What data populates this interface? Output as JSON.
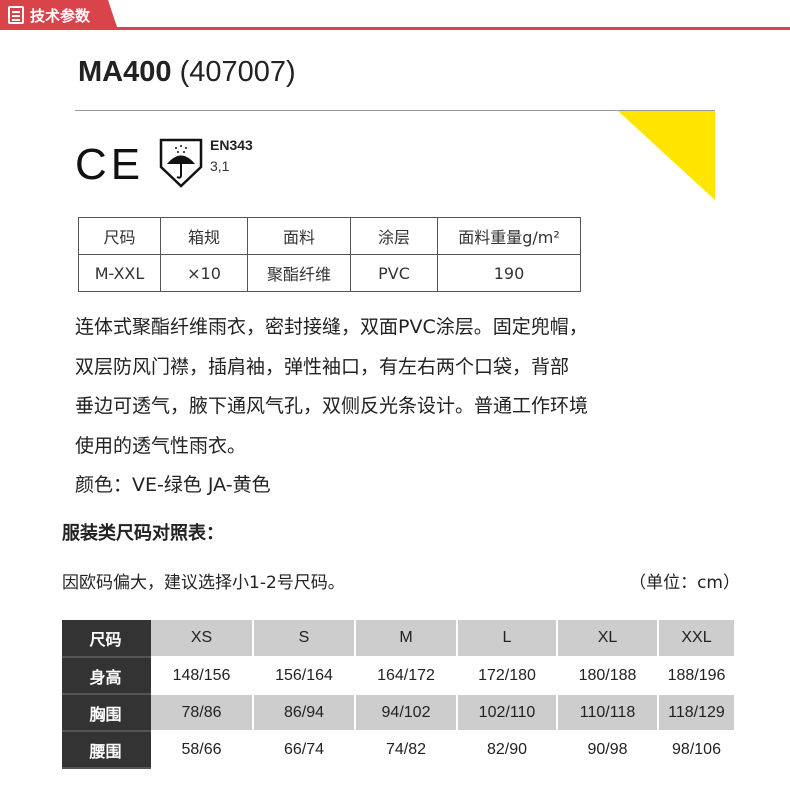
{
  "header": {
    "tab_label": "技术参数",
    "accent": "#d9434a"
  },
  "product": {
    "model": "MA400",
    "code": "(407007)"
  },
  "certs": {
    "ce": "CE",
    "standard": "EN343",
    "rating": "3,1",
    "icon": "umbrella-shield-icon"
  },
  "spec_table": {
    "headers": [
      "尺码",
      "箱规",
      "面料",
      "涂层",
      "面料重量g/m²"
    ],
    "rows": [
      [
        "M-XXL",
        "×10",
        "聚酯纤维",
        "PVC",
        "190"
      ]
    ]
  },
  "description": [
    "连体式聚酯纤维雨衣，密封接缝，双面PVC涂层。固定兜帽，",
    "双层防风门襟，插肩袖，弹性袖口，有左右两个口袋，背部",
    "垂边可透气，腋下通风气孔，双侧反光条设计。普通工作环境",
    "使用的透气性雨衣。",
    "颜色：VE-绿色 JA-黄色"
  ],
  "size_chart": {
    "title": "服装类尺码对照表：",
    "note": "因欧码偏大，建议选择小1-2号尺码。",
    "unit": "（单位：cm）",
    "rows": [
      [
        "尺码",
        "XS",
        "S",
        "M",
        "L",
        "XL",
        "XXL"
      ],
      [
        "身高",
        "148/156",
        "156/164",
        "164/172",
        "172/180",
        "180/188",
        "188/196"
      ],
      [
        "胸围",
        "78/86",
        "86/94",
        "94/102",
        "102/110",
        "110/118",
        "118/129"
      ],
      [
        "腰围",
        "58/66",
        "66/74",
        "74/82",
        "82/90",
        "90/98",
        "98/106"
      ]
    ]
  }
}
